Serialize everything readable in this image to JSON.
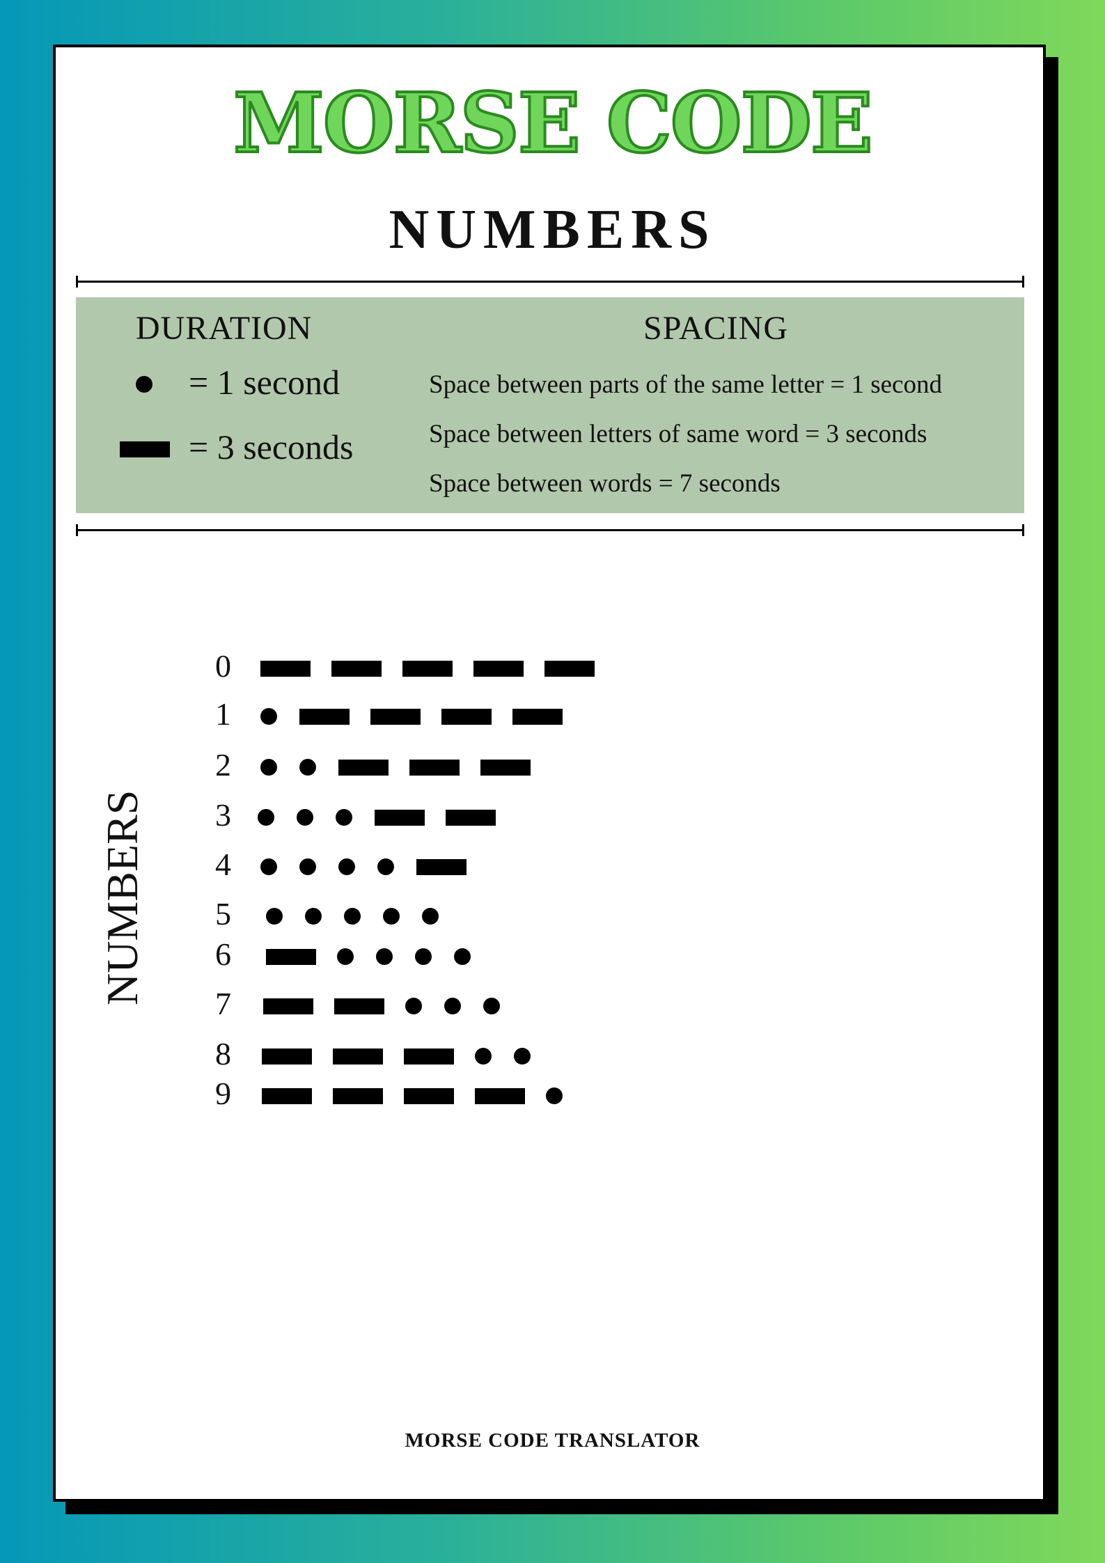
{
  "title": "MORSE CODE",
  "subtitle": "NUMBERS",
  "duration": {
    "heading": "DURATION",
    "dot_label": "= 1 second",
    "dash_label": "= 3 seconds"
  },
  "spacing": {
    "heading": "SPACING",
    "lines": [
      "Space between parts of the same letter = 1 second",
      "Space between letters of same word = 3 seconds",
      "Space between words = 7 seconds"
    ]
  },
  "side_label": "NUMBERS",
  "numbers": [
    {
      "digit": "0",
      "code": "-----"
    },
    {
      "digit": "1",
      "code": ".----"
    },
    {
      "digit": "2",
      "code": "..---"
    },
    {
      "digit": "3",
      "code": "...--"
    },
    {
      "digit": "4",
      "code": "....-"
    },
    {
      "digit": "5",
      "code": "....."
    },
    {
      "digit": "6",
      "code": "-...."
    },
    {
      "digit": "7",
      "code": "--..."
    },
    {
      "digit": "8",
      "code": "---.."
    },
    {
      "digit": "9",
      "code": "----."
    }
  ],
  "footer": "MORSE CODE TRANSLATOR"
}
